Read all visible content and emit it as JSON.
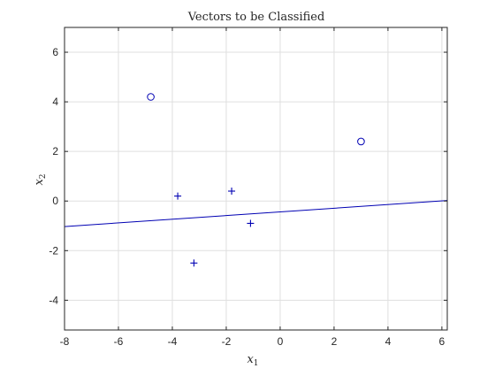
{
  "chart_data": {
    "type": "scatter",
    "title": "Vectors to be Classified",
    "xlabel": "x",
    "xlabel_sub": "1",
    "ylabel": "x",
    "ylabel_sub": "2",
    "xlim": [
      -8,
      6.2
    ],
    "ylim": [
      -5.2,
      7
    ],
    "x_ticks": [
      -8,
      -6,
      -4,
      -2,
      0,
      2,
      4,
      6
    ],
    "y_ticks": [
      -4,
      -2,
      0,
      2,
      4,
      6
    ],
    "x_tick_labels": [
      "-8",
      "-6",
      "-4",
      "-2",
      "0",
      "2",
      "4",
      "6"
    ],
    "y_tick_labels": [
      "-4",
      "-2",
      "0",
      "2",
      "4",
      "6"
    ],
    "grid": true,
    "series": [
      {
        "marker": "circle",
        "color": "#0000b3",
        "points": [
          {
            "x": -4.8,
            "y": 4.2
          },
          {
            "x": 3.0,
            "y": 2.4
          }
        ]
      },
      {
        "marker": "plus",
        "color": "#0000b3",
        "points": [
          {
            "x": -3.8,
            "y": 0.2
          },
          {
            "x": -1.8,
            "y": 0.4
          },
          {
            "x": -1.1,
            "y": -0.9
          },
          {
            "x": -3.2,
            "y": -2.5
          }
        ]
      }
    ],
    "lines": [
      {
        "color": "#0000b3",
        "x": [
          -8,
          6.2
        ],
        "y": [
          -1.03,
          0.02
        ]
      }
    ]
  }
}
